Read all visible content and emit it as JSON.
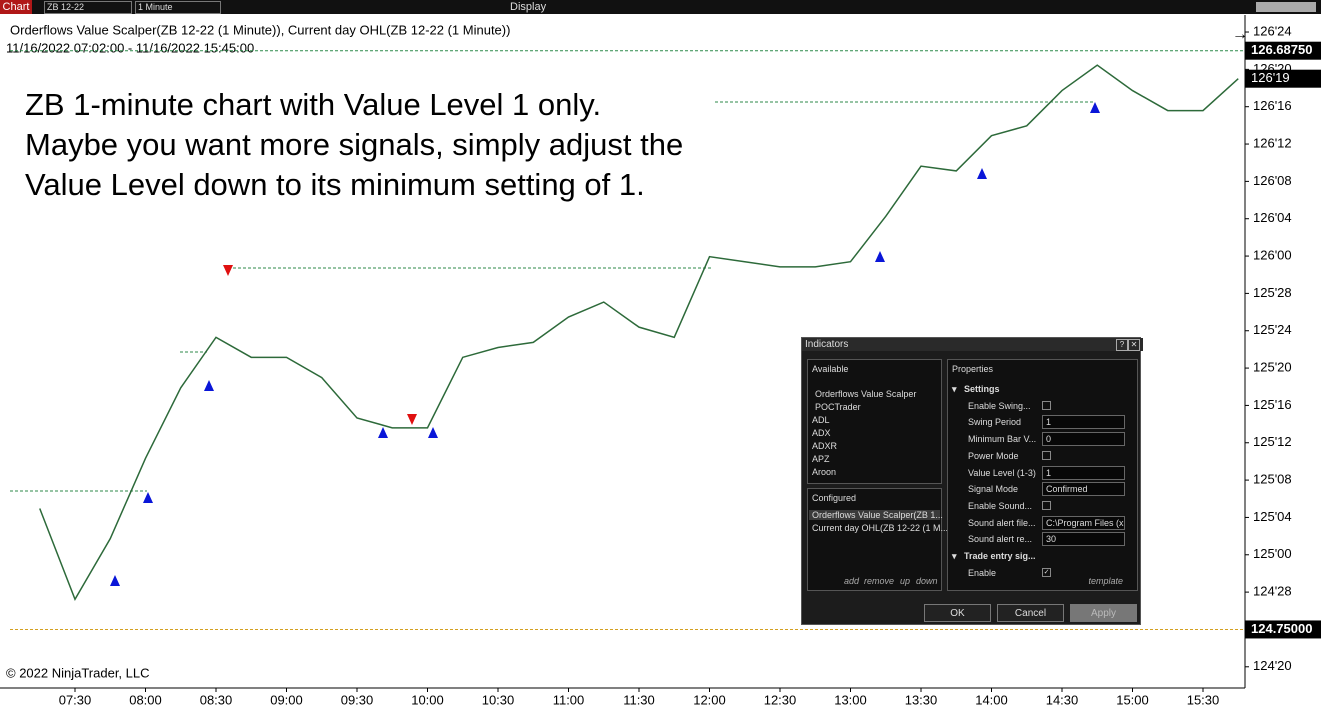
{
  "toolbar": {
    "chart_tab": "Chart",
    "instrument": "ZB 12-22",
    "interval": "1 Minute",
    "display": "Display"
  },
  "header": {
    "title": "Orderflows Value Scalper(ZB 12-22 (1 Minute)), Current day OHL(ZB 12-22 (1 Minute))",
    "range": "11/16/2022 07:02:00 - 11/16/2022 15:45:00"
  },
  "annotation": [
    "ZB 1-minute chart with Value Level 1 only.",
    "Maybe you want more signals, simply adjust the",
    "Value Level down to its minimum setting of 1."
  ],
  "copyright": "© 2022 NinjaTrader, LLC",
  "chart_data": {
    "type": "line",
    "color": "#2d6a3a",
    "categories": [
      null,
      "07:30",
      null,
      "08:00",
      null,
      "08:30",
      null,
      "09:00",
      null,
      "09:30",
      null,
      "10:00",
      null,
      "10:30",
      null,
      "11:00",
      null,
      "11:30",
      null,
      "12:00",
      null,
      "12:30",
      null,
      "13:00",
      null,
      "13:30",
      null,
      "14:00",
      null,
      "14:30",
      null,
      "15:00",
      null,
      "15:30",
      null
    ],
    "values": [
      125.155,
      124.851,
      125.054,
      125.323,
      125.559,
      125.728,
      125.661,
      125.661,
      125.593,
      125.458,
      125.425,
      125.425,
      125.661,
      125.694,
      125.711,
      125.796,
      125.846,
      125.762,
      125.728,
      125.998,
      125.981,
      125.964,
      125.964,
      125.981,
      126.133,
      126.301,
      126.285,
      126.403,
      126.436,
      126.554,
      126.639,
      126.554,
      126.487,
      126.487,
      126.59375
    ],
    "ylim": [
      124.554,
      126.807
    ],
    "yticks": [
      {
        "value": 124.625,
        "label": "124'20"
      },
      {
        "value": 124.75,
        "label": "124'24"
      },
      {
        "value": 124.875,
        "label": "124'28"
      },
      {
        "value": 125,
        "label": "125'00"
      },
      {
        "value": 125.125,
        "label": "125'04"
      },
      {
        "value": 125.25,
        "label": "125'08"
      },
      {
        "value": 125.375,
        "label": "125'12"
      },
      {
        "value": 125.5,
        "label": "125'16"
      },
      {
        "value": 125.625,
        "label": "125'20"
      },
      {
        "value": 125.75,
        "label": "125'24"
      },
      {
        "value": 125.875,
        "label": "125'28"
      },
      {
        "value": 126,
        "label": "126'00"
      },
      {
        "value": 126.125,
        "label": "126'04"
      },
      {
        "value": 126.25,
        "label": "126'08"
      },
      {
        "value": 126.375,
        "label": "126'12"
      },
      {
        "value": 126.5,
        "label": "126'16"
      },
      {
        "value": 126.625,
        "label": "126'20"
      },
      {
        "value": 126.75,
        "label": "126'24"
      }
    ],
    "levels": [
      {
        "value": 126.6875,
        "label": "126.68750",
        "color": "#2d8a4a"
      },
      {
        "value": 124.75,
        "label": "124.75000",
        "color": "#d4a020"
      }
    ],
    "last_price": {
      "value": 126.59375,
      "label": "126'19"
    }
  },
  "dialog": {
    "title": "Indicators",
    "available_label": "Available",
    "available": [
      "Orderflows Value Scalper",
      "POCTrader",
      "ADL",
      "ADX",
      "ADXR",
      "APZ",
      "Aroon"
    ],
    "configured_label": "Configured",
    "configured": [
      "Orderflows Value Scalper(ZB 1...",
      "Current day OHL(ZB 12-22 (1 M..."
    ],
    "actions": [
      "add",
      "remove",
      "up",
      "down"
    ],
    "properties_label": "Properties",
    "groups": [
      {
        "name": "Settings",
        "properties": [
          {
            "name": "Enable Swing...",
            "checked": false
          },
          {
            "name": "Swing Period",
            "value": "1"
          },
          {
            "name": "Minimum Bar V...",
            "value": "0"
          },
          {
            "name": "Power Mode",
            "checked": false
          },
          {
            "name": "Value Level (1-3)",
            "value": "1"
          },
          {
            "name": "Signal Mode",
            "value": "Confirmed"
          },
          {
            "name": "Enable Sound...",
            "checked": false
          },
          {
            "name": "Sound alert file...",
            "value": "C:\\Program Files (x"
          },
          {
            "name": "Sound alert re...",
            "value": "30"
          }
        ]
      },
      {
        "name": "Trade entry sig...",
        "properties": [
          {
            "name": "Enable",
            "checked": true
          }
        ]
      }
    ],
    "template": "template",
    "buttons": [
      "OK",
      "Cancel",
      "Apply"
    ]
  }
}
